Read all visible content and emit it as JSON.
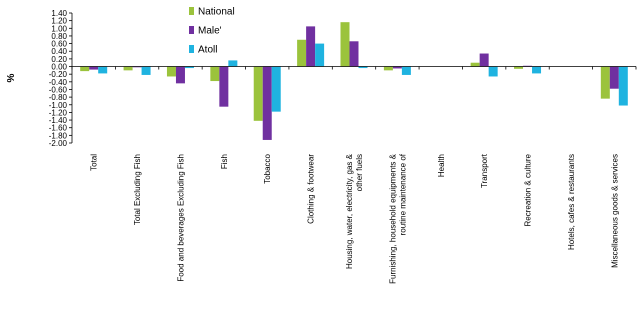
{
  "chart_data": {
    "type": "bar",
    "title": "",
    "xlabel": "",
    "ylabel": "%",
    "ylim": [
      -2.0,
      1.4
    ],
    "ytick_step": 0.2,
    "grid": false,
    "legend_position": "top-left",
    "categories": [
      "Total",
      "Total Excluding Fish",
      "Food and beverages Excluding Fish",
      "Fish",
      "Tobacco",
      "Clothing & footwear",
      "Housing, water, electricity, gas & other fuels",
      "Furnishing, household equipments & routine maintenance of",
      "Health",
      "Transport",
      "Recreation & culture",
      "Hotels, cafes & restaurants",
      "Miscellaneous goods & services"
    ],
    "category_label_lines": [
      [
        "Total"
      ],
      [
        "Total Excluding Fish"
      ],
      [
        "Food and beverages Excluding Fish"
      ],
      [
        "Fish"
      ],
      [
        "Tobacco"
      ],
      [
        "Clothing & footwear"
      ],
      [
        "Housing, water, electricity, gas &",
        "other fuels"
      ],
      [
        "Furnishing, household equipments &",
        "routine maintenance of"
      ],
      [
        "Health"
      ],
      [
        "Transport"
      ],
      [
        "Recreation & culture"
      ],
      [
        "Hotels, cafes & restaurants"
      ],
      [
        "Miscellaneous goods & services"
      ]
    ],
    "series": [
      {
        "name": "National",
        "color": "#9BC33C",
        "values": [
          -0.12,
          -0.1,
          -0.26,
          -0.38,
          -1.42,
          0.7,
          1.16,
          -0.1,
          0.0,
          0.1,
          -0.06,
          0.0,
          -0.84
        ]
      },
      {
        "name": "Male'",
        "color": "#7030A0",
        "values": [
          -0.08,
          -0.02,
          -0.44,
          -1.05,
          -1.92,
          1.05,
          0.66,
          -0.05,
          0.0,
          0.34,
          0.02,
          0.0,
          -0.58
        ]
      },
      {
        "name": "Atoll",
        "color": "#1FB3E0",
        "values": [
          -0.18,
          -0.22,
          -0.04,
          0.16,
          -1.18,
          0.6,
          -0.04,
          -0.22,
          0.0,
          -0.26,
          -0.18,
          0.0,
          -1.02
        ]
      }
    ]
  }
}
